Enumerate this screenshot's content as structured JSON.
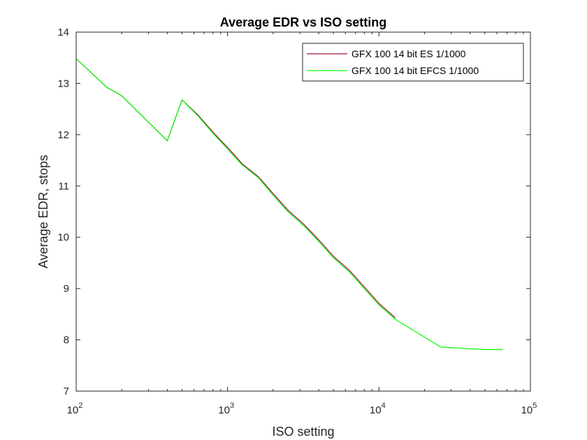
{
  "chart_data": {
    "type": "line",
    "title": "Average EDR vs ISO setting",
    "xlabel": "ISO setting",
    "ylabel": "Average EDR, stops",
    "xscale": "log",
    "xlim": [
      100,
      100000
    ],
    "ylim": [
      7,
      14
    ],
    "yticks": [
      7,
      8,
      9,
      10,
      11,
      12,
      13,
      14
    ],
    "xticks": [
      {
        "value": 100,
        "base": "10",
        "exp": "2"
      },
      {
        "value": 1000,
        "base": "10",
        "exp": "3"
      },
      {
        "value": 10000,
        "base": "10",
        "exp": "4"
      },
      {
        "value": 100000,
        "base": "10",
        "exp": "5"
      }
    ],
    "grid": false,
    "legend_position": "top-right",
    "series": [
      {
        "name": "GFX 100 14 bit ES 1/1000",
        "color": "#a2142f",
        "x": [
          100,
          160,
          200,
          400,
          500,
          640,
          800,
          1000,
          1250,
          1600,
          2000,
          2500,
          3200,
          4000,
          5000,
          6400,
          8000,
          10000,
          12800
        ],
        "y": [
          13.48,
          12.92,
          12.76,
          11.88,
          12.68,
          12.38,
          12.05,
          11.75,
          11.43,
          11.18,
          10.85,
          10.53,
          10.25,
          9.95,
          9.63,
          9.35,
          9.03,
          8.71,
          8.43
        ]
      },
      {
        "name": "GFX 100 14 bit EFCS 1/1000",
        "color": "#00ff00",
        "x": [
          100,
          160,
          200,
          400,
          500,
          640,
          800,
          1000,
          1250,
          1600,
          2000,
          2500,
          3200,
          4000,
          5000,
          6400,
          8000,
          10000,
          12800,
          25600,
          51200,
          65535
        ],
        "y": [
          13.48,
          12.92,
          12.76,
          11.88,
          12.68,
          12.36,
          12.03,
          11.72,
          11.41,
          11.16,
          10.82,
          10.5,
          10.22,
          9.92,
          9.6,
          9.32,
          9.0,
          8.68,
          8.4,
          7.86,
          7.81,
          7.81
        ]
      }
    ]
  }
}
